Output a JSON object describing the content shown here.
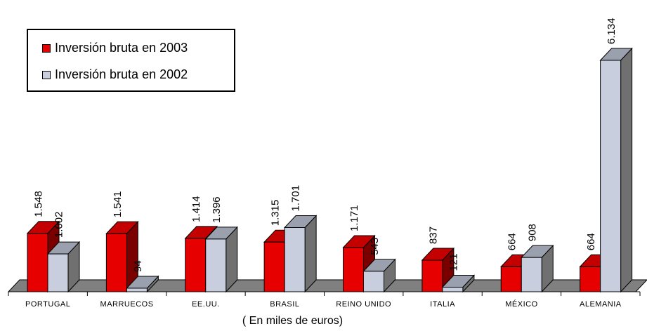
{
  "chart_data": {
    "type": "bar",
    "categories": [
      "PORTUGAL",
      "MARRUECOS",
      "EE.UU.",
      "BRASIL",
      "REINO UNIDO",
      "ITALIA",
      "MÉXICO",
      "ALEMANIA"
    ],
    "series": [
      {
        "name": "Inversión bruta en 2003",
        "values": [
          1548,
          1541,
          1414,
          1315,
          1171,
          837,
          664,
          664
        ],
        "labels": [
          "1.548",
          "1.541",
          "1.414",
          "1.315",
          "1.171",
          "837",
          "664",
          "664"
        ],
        "color": "#e60000"
      },
      {
        "name": "Inversión bruta en 2002",
        "values": [
          1002,
          94,
          1396,
          1701,
          543,
          121,
          908,
          6134
        ],
        "labels": [
          "1.002",
          "94",
          "1.396",
          "1.701",
          "543",
          "121",
          "908",
          "6.134"
        ],
        "color": "#c8cedd"
      }
    ],
    "ylim": [
      0,
      6134
    ],
    "grid": false,
    "legend_position": "top-left",
    "footer": "( En miles de euros)"
  }
}
